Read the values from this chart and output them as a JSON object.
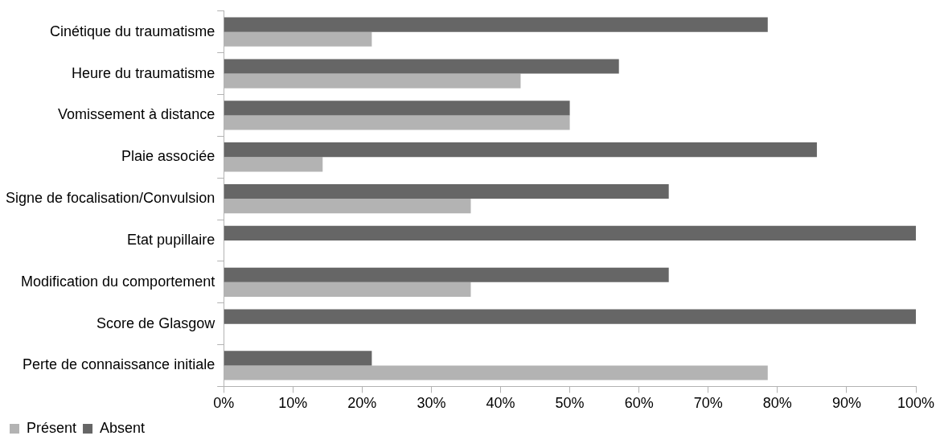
{
  "chart_data": {
    "type": "bar",
    "orientation": "horizontal",
    "categories": [
      "Cinétique du traumatisme",
      "Heure du traumatisme",
      "Vomissement à distance",
      "Plaie associée",
      "Signe de focalisation/Convulsion",
      "Etat pupillaire",
      "Modification du comportement",
      "Score de Glasgow",
      "Perte de connaissance initiale"
    ],
    "series": [
      {
        "name": "Présent",
        "color": "#b3b3b3",
        "values": [
          21.4,
          42.9,
          50,
          14.3,
          35.7,
          0,
          35.7,
          0,
          78.6
        ]
      },
      {
        "name": "Absent",
        "color": "#666666",
        "values": [
          78.6,
          57.1,
          50,
          85.7,
          64.3,
          100,
          64.3,
          100,
          21.4
        ]
      }
    ],
    "xlim": [
      0,
      100
    ],
    "xticks": [
      {
        "value": 0,
        "label": "0%"
      },
      {
        "value": 10,
        "label": "10%"
      },
      {
        "value": 20,
        "label": "20%"
      },
      {
        "value": 30,
        "label": "30%"
      },
      {
        "value": 40,
        "label": "40%"
      },
      {
        "value": 50,
        "label": "50%"
      },
      {
        "value": 60,
        "label": "60%"
      },
      {
        "value": 70,
        "label": "70%"
      },
      {
        "value": 80,
        "label": "80%"
      },
      {
        "value": 90,
        "label": "90%"
      },
      {
        "value": 100,
        "label": "100%"
      }
    ],
    "grid": false,
    "legend": "bottom"
  }
}
